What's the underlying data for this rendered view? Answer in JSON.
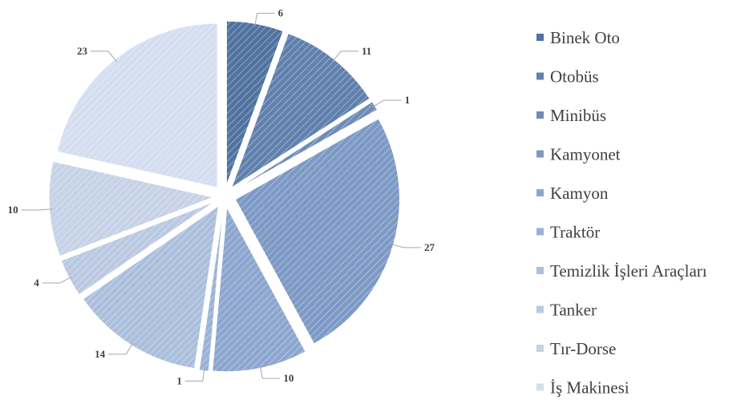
{
  "chart_data": {
    "type": "pie",
    "exploded": true,
    "legend_position": "right",
    "categories": [
      "Binek Oto",
      "Otobüs",
      "Minibüs",
      "Kamyonet",
      "Kamyon",
      "Traktör",
      "Temizlik İşleri Araçları",
      "Tanker",
      "Tır-Dorse",
      "İş Makinesi"
    ],
    "values": [
      6,
      11,
      1,
      27,
      10,
      1,
      14,
      4,
      10,
      23
    ],
    "colors": [
      "#50739f",
      "#6080ad",
      "#6f8cb8",
      "#7d99c5",
      "#8ca6cf",
      "#9bb2d6",
      "#abbfdc",
      "#bac9e1",
      "#c6d2e6",
      "#d4def0"
    ],
    "pattern": "diagonal-hatch"
  }
}
